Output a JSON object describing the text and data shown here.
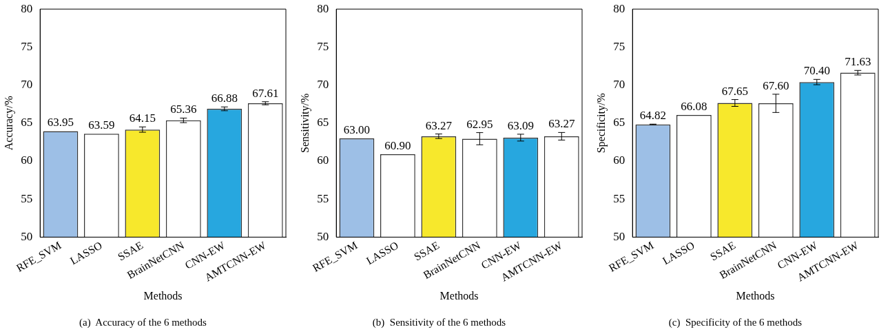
{
  "chart_data": [
    {
      "type": "bar",
      "title": "(a)  Accuracy of the 6 methods",
      "xlabel": "Methods",
      "ylabel": "Accuracy/%",
      "categories": [
        "RFE_SVM",
        "LASSO",
        "SSAE",
        "BrainNetCNN",
        "CNN-EW",
        "AMTCNN-EW"
      ],
      "values": [
        63.95,
        63.59,
        64.15,
        65.36,
        66.88,
        67.61
      ],
      "colors": [
        "#9dbfe6",
        "#ffffff",
        "#f7e82c",
        "#ffffff",
        "#27a7df",
        "#ffffff"
      ],
      "errors": [
        null,
        null,
        0.35,
        0.3,
        0.25,
        0.2
      ],
      "ylim": [
        50,
        80
      ],
      "yticks": [
        50,
        55,
        60,
        65,
        70,
        75,
        80
      ],
      "value_labels": [
        "63.95",
        "63.59",
        "64.15",
        "65.36",
        "66.88",
        "67.61"
      ],
      "grid": false,
      "legend": false
    },
    {
      "type": "bar",
      "title": "(b)  Sensitivity of the 6 methods",
      "xlabel": "Methods",
      "ylabel": "Sensitivity/%",
      "categories": [
        "RFE_SVM",
        "LASSO",
        "SSAE",
        "BrainNetCNN",
        "CNN-EW",
        "AMTCNN-EW"
      ],
      "values": [
        63.0,
        60.9,
        63.27,
        62.95,
        63.09,
        63.27
      ],
      "colors": [
        "#9dbfe6",
        "#ffffff",
        "#f7e82c",
        "#ffffff",
        "#27a7df",
        "#ffffff"
      ],
      "errors": [
        null,
        null,
        0.3,
        0.8,
        0.45,
        0.5
      ],
      "ylim": [
        50,
        80
      ],
      "yticks": [
        50,
        55,
        60,
        65,
        70,
        75,
        80
      ],
      "value_labels": [
        "63.00",
        "60.90",
        "63.27",
        "62.95",
        "63.09",
        "63.27"
      ],
      "grid": false,
      "legend": false
    },
    {
      "type": "bar",
      "title": "(c)  Specificity of the 6 methods",
      "xlabel": "Methods",
      "ylabel": "Specificity/%",
      "categories": [
        "RFE_SVM",
        "LASSO",
        "SSAE",
        "BrainNetCNN",
        "CNN-EW",
        "AMTCNN-EW"
      ],
      "values": [
        64.82,
        66.08,
        67.65,
        67.6,
        70.4,
        71.63
      ],
      "colors": [
        "#9dbfe6",
        "#ffffff",
        "#f7e82c",
        "#ffffff",
        "#27a7df",
        "#ffffff"
      ],
      "errors": [
        0.05,
        null,
        0.45,
        1.2,
        0.35,
        0.3
      ],
      "ylim": [
        50,
        80
      ],
      "yticks": [
        50,
        55,
        60,
        65,
        70,
        75,
        80
      ],
      "value_labels": [
        "64.82",
        "66.08",
        "67.65",
        "67.60",
        "70.40",
        "71.63"
      ],
      "grid": false,
      "legend": false
    }
  ]
}
